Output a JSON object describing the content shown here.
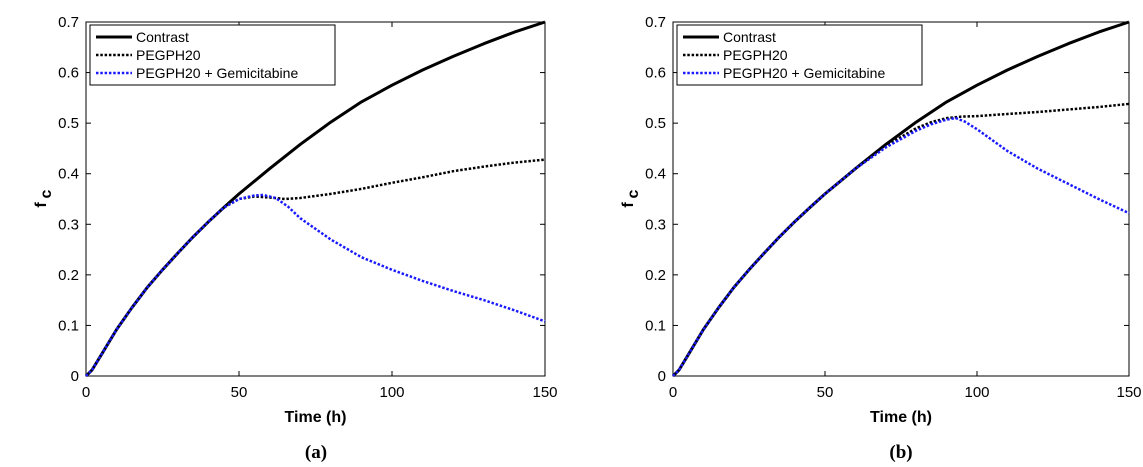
{
  "chart_data": [
    {
      "type": "line",
      "panel_label": "(a)",
      "title": "",
      "xlabel": "Time (h)",
      "ylabel": "f",
      "ylabel_subscript": "c",
      "xlim": [
        0,
        150
      ],
      "ylim": [
        0,
        0.7
      ],
      "xticks": [
        0,
        50,
        100,
        150
      ],
      "yticks": [
        0,
        0.1,
        0.2,
        0.3,
        0.4,
        0.5,
        0.6,
        0.7
      ],
      "grid": false,
      "legend_position": "top-left",
      "series": [
        {
          "name": "Contrast",
          "color": "#000000",
          "style": "solid",
          "x": [
            0,
            2,
            5,
            10,
            15,
            20,
            25,
            30,
            35,
            40,
            45,
            50,
            55,
            60,
            70,
            80,
            90,
            100,
            110,
            120,
            130,
            140,
            150
          ],
          "y": [
            0,
            0.012,
            0.042,
            0.092,
            0.135,
            0.175,
            0.21,
            0.243,
            0.275,
            0.305,
            0.333,
            0.36,
            0.385,
            0.41,
            0.458,
            0.502,
            0.542,
            0.575,
            0.605,
            0.632,
            0.657,
            0.68,
            0.7
          ]
        },
        {
          "name": "PEGPH20",
          "color": "#000000",
          "style": "dotted",
          "x": [
            0,
            2,
            5,
            10,
            15,
            20,
            25,
            30,
            35,
            40,
            45,
            50,
            55,
            60,
            65,
            70,
            80,
            90,
            100,
            110,
            120,
            130,
            140,
            150
          ],
          "y": [
            0,
            0.012,
            0.042,
            0.092,
            0.135,
            0.175,
            0.21,
            0.243,
            0.275,
            0.305,
            0.333,
            0.35,
            0.355,
            0.353,
            0.35,
            0.352,
            0.36,
            0.37,
            0.382,
            0.393,
            0.405,
            0.414,
            0.422,
            0.428
          ]
        },
        {
          "name": "PEGPH20 + Gemicitabine",
          "color": "#1a1aff",
          "style": "dotted",
          "x": [
            0,
            2,
            5,
            10,
            15,
            20,
            25,
            30,
            35,
            40,
            45,
            50,
            55,
            58,
            62,
            66,
            70,
            80,
            90,
            100,
            110,
            120,
            130,
            140,
            150
          ],
          "y": [
            0,
            0.012,
            0.042,
            0.092,
            0.135,
            0.175,
            0.21,
            0.243,
            0.275,
            0.305,
            0.333,
            0.35,
            0.357,
            0.358,
            0.352,
            0.335,
            0.312,
            0.27,
            0.235,
            0.21,
            0.188,
            0.168,
            0.15,
            0.13,
            0.108
          ]
        }
      ]
    },
    {
      "type": "line",
      "panel_label": "(b)",
      "title": "",
      "xlabel": "Time (h)",
      "ylabel": "f",
      "ylabel_subscript": "c",
      "xlim": [
        0,
        150
      ],
      "ylim": [
        0,
        0.7
      ],
      "xticks": [
        0,
        50,
        100,
        150
      ],
      "yticks": [
        0,
        0.1,
        0.2,
        0.3,
        0.4,
        0.5,
        0.6,
        0.7
      ],
      "grid": false,
      "legend_position": "top-left",
      "series": [
        {
          "name": "Contrast",
          "color": "#000000",
          "style": "solid",
          "x": [
            0,
            2,
            5,
            10,
            15,
            20,
            25,
            30,
            35,
            40,
            45,
            50,
            55,
            60,
            70,
            80,
            90,
            100,
            110,
            120,
            130,
            140,
            150
          ],
          "y": [
            0,
            0.012,
            0.042,
            0.092,
            0.135,
            0.175,
            0.21,
            0.243,
            0.275,
            0.305,
            0.333,
            0.36,
            0.385,
            0.41,
            0.458,
            0.502,
            0.542,
            0.575,
            0.605,
            0.632,
            0.657,
            0.68,
            0.7
          ]
        },
        {
          "name": "PEGPH20",
          "color": "#000000",
          "style": "dotted",
          "x": [
            0,
            2,
            5,
            10,
            15,
            20,
            25,
            30,
            35,
            40,
            45,
            50,
            55,
            60,
            70,
            80,
            85,
            90,
            95,
            100,
            110,
            120,
            130,
            140,
            150
          ],
          "y": [
            0,
            0.012,
            0.042,
            0.092,
            0.135,
            0.175,
            0.21,
            0.243,
            0.275,
            0.305,
            0.333,
            0.36,
            0.385,
            0.41,
            0.455,
            0.49,
            0.502,
            0.51,
            0.513,
            0.514,
            0.518,
            0.522,
            0.527,
            0.532,
            0.538
          ]
        },
        {
          "name": "PEGPH20 + Gemicitabine",
          "color": "#1a1aff",
          "style": "dotted",
          "x": [
            0,
            2,
            5,
            10,
            15,
            20,
            25,
            30,
            35,
            40,
            45,
            50,
            55,
            60,
            70,
            80,
            85,
            90,
            93,
            96,
            100,
            110,
            120,
            130,
            140,
            150
          ],
          "y": [
            0,
            0.012,
            0.042,
            0.092,
            0.135,
            0.175,
            0.21,
            0.243,
            0.275,
            0.305,
            0.333,
            0.36,
            0.385,
            0.41,
            0.452,
            0.485,
            0.498,
            0.507,
            0.51,
            0.503,
            0.488,
            0.445,
            0.41,
            0.38,
            0.35,
            0.322
          ]
        }
      ]
    }
  ]
}
